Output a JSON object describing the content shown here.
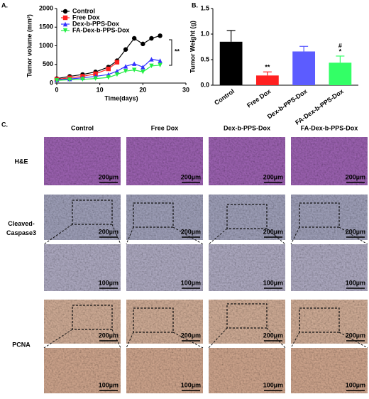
{
  "chart_data": [
    {
      "type": "line",
      "panel_label": "A.",
      "xlabel": "Time(days)",
      "ylabel": "Tumor volume (mm³)",
      "x": [
        0,
        3,
        6,
        9,
        12,
        14,
        16,
        18,
        20,
        22,
        24
      ],
      "series": [
        {
          "name": "Control",
          "color": "#000000",
          "marker": "circle",
          "values": [
            120,
            180,
            230,
            300,
            430,
            600,
            900,
            1200,
            1050,
            1200,
            1270
          ]
        },
        {
          "name": "Free Dox",
          "color": "#ff2020",
          "marker": "square",
          "values": [
            100,
            140,
            180,
            250,
            380,
            560,
            null,
            null,
            null,
            null,
            null
          ]
        },
        {
          "name": "Dex-b-PPS-Dox",
          "color": "#3333ff",
          "marker": "triangle",
          "values": [
            90,
            110,
            140,
            180,
            230,
            320,
            450,
            520,
            430,
            640,
            600
          ]
        },
        {
          "name": "FA-Dex-b-PPS-Dox",
          "color": "#22ee44",
          "marker": "triangle-down",
          "values": [
            70,
            90,
            100,
            120,
            150,
            230,
            320,
            350,
            300,
            460,
            480
          ]
        }
      ],
      "xlim": [
        0,
        30
      ],
      "xticks": [
        0,
        10,
        20,
        30
      ],
      "ylim": [
        0,
        2000
      ],
      "yticks": [
        0,
        500,
        1000,
        1500,
        2000
      ],
      "legend": "top-left",
      "annotation": "**"
    },
    {
      "type": "bar",
      "panel_label": "B.",
      "ylabel": "Tumor Weight (g)",
      "categories": [
        "Control",
        "Free Dox",
        "Dex-b-PPS-Dox",
        "FA-Dex-b-PPS-Dox"
      ],
      "values": [
        0.85,
        0.19,
        0.66,
        0.44
      ],
      "errors": [
        0.22,
        0.07,
        0.1,
        0.13
      ],
      "colors": [
        "#000000",
        "#ff2020",
        "#5c5cff",
        "#33ff66"
      ],
      "annotations": [
        null,
        [
          "**"
        ],
        null,
        [
          "#",
          "*"
        ]
      ],
      "ylim": [
        0,
        1.5
      ],
      "yticks": [
        {
          "value": 0,
          "label": "0.0"
        },
        0.5,
        {
          "value": 1,
          "label": "1.0"
        },
        1.5
      ]
    }
  ],
  "figure": {
    "panel_label": "C.",
    "columns": [
      "Control",
      "Free Dox",
      "Dex-b-PPS-Dox",
      "FA-Dex-b-PPS-Dox"
    ],
    "rows": [
      {
        "label": [
          "H&E"
        ],
        "scale": "200µm"
      },
      {
        "label": [
          "Cleaved-",
          "Caspase3"
        ],
        "scale": "200µm",
        "zoom_scale": "100µm"
      },
      {
        "label": [
          "PCNA"
        ],
        "scale": "200µm",
        "zoom_scale": "100µm"
      }
    ]
  }
}
